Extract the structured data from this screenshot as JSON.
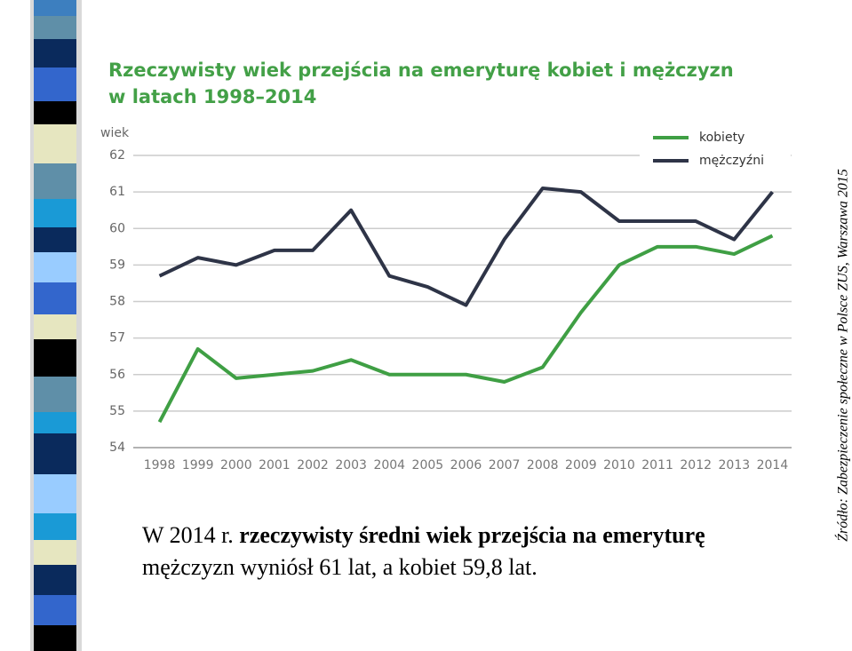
{
  "chart_data": {
    "type": "line",
    "title": [
      "Rzeczywisty wiek przejścia na emeryturę kobiet i mężczyzn",
      "w latach 1998–2014"
    ],
    "y_label": "wiek",
    "categories": [
      "1998",
      "1999",
      "2000",
      "2001",
      "2002",
      "2003",
      "2004",
      "2005",
      "2006",
      "2007",
      "2008",
      "2009",
      "2010",
      "2011",
      "2012",
      "2013",
      "2014"
    ],
    "series": [
      {
        "name": "kobiety",
        "color": "#3f9f44",
        "values": [
          54.7,
          56.7,
          55.9,
          56.0,
          56.1,
          56.4,
          56.0,
          56.0,
          56.0,
          55.8,
          56.2,
          57.7,
          59.0,
          59.5,
          59.5,
          59.3,
          59.8
        ]
      },
      {
        "name": "mężczyźni",
        "color": "#2e3447",
        "values": [
          58.7,
          59.2,
          59.0,
          59.4,
          59.4,
          60.5,
          58.7,
          58.4,
          57.9,
          59.7,
          61.1,
          61.0,
          60.2,
          60.2,
          60.2,
          59.7,
          61.0
        ]
      }
    ],
    "ylim": [
      54,
      62
    ],
    "yticks": [
      54,
      55,
      56,
      57,
      58,
      59,
      60,
      61,
      62
    ],
    "grid": true,
    "legend": "upper right"
  },
  "caption": [
    "W 2014 r. ",
    "rzeczywisty średni wiek przejścia na emeryturę",
    " mężczyzn wyniósł 61 lat, a kobiet 59,8 lat."
  ],
  "source": "Źródło: Zabezpieczenie społeczne w Polsce ZUS, Warszawa 2015"
}
